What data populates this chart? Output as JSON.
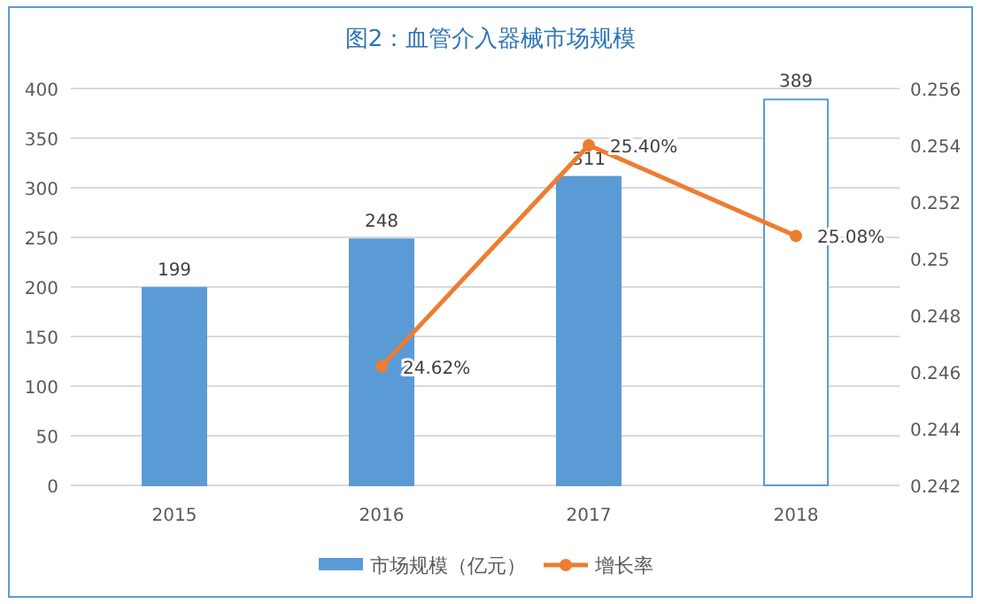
{
  "chart_data": {
    "type": "bar",
    "title": "图2：血管介入器械市场规模",
    "categories": [
      "2015",
      "2016",
      "2017",
      "2018"
    ],
    "series": [
      {
        "name": "市场规模（亿元）",
        "color": "#5b9bd5",
        "colors": [
          "#5b9bd5",
          "#5b9bd5",
          "#5b9bd5",
          "#ffffff"
        ],
        "values": [
          199,
          248,
          311,
          389
        ],
        "value_labels": [
          "199",
          "248",
          "311",
          "389"
        ]
      },
      {
        "name": "增长率",
        "type": "line",
        "axis": "y2",
        "color": "#ed7d31",
        "marker": "circle",
        "values": [
          null,
          0.2462,
          0.254,
          0.2508
        ],
        "value_labels": [
          null,
          "24.62%",
          "25.40%",
          "25.08%"
        ]
      }
    ],
    "ylim": [
      0,
      400
    ],
    "yticks": [
      0,
      50,
      100,
      150,
      200,
      250,
      300,
      350,
      400
    ],
    "y2lim": [
      0.242,
      0.256
    ],
    "y2ticks": [
      0.242,
      0.244,
      0.246,
      0.248,
      0.25,
      0.252,
      0.254,
      0.256
    ],
    "grid": "y",
    "legend": "bottom"
  }
}
